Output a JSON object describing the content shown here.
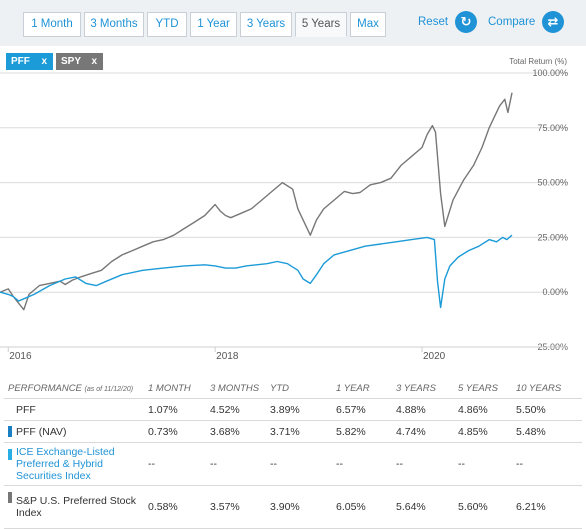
{
  "toolbar": {
    "tabs": [
      "1 Month",
      "3 Months",
      "YTD",
      "1 Year",
      "3 Years",
      "5 Years",
      "Max"
    ],
    "active_tab": "5 Years",
    "reset_label": "Reset",
    "compare_label": "Compare",
    "reset_icon": "refresh-icon",
    "compare_icon": "swap-arrows-icon"
  },
  "tickers": [
    {
      "label": "PFF",
      "remove": "x",
      "color": "#1b9bd7"
    },
    {
      "label": "SPY",
      "remove": "x",
      "color": "#777777"
    }
  ],
  "chart_data": {
    "type": "line",
    "ylabel": "Total Return (%)",
    "y_ticks": [
      "100.00%",
      "75.00%",
      "50.00%",
      "25.00%",
      "0.00%",
      "−25.00%"
    ],
    "y_tick_values": [
      100,
      75,
      50,
      25,
      0,
      -25
    ],
    "ylim": [
      -25,
      100
    ],
    "x_ticks": [
      "2016",
      "2018",
      "2020"
    ],
    "x_tick_values": [
      2016.0,
      2018.0,
      2020.0
    ],
    "xlim": [
      2015.92,
      2020.87
    ],
    "grid": true,
    "series": [
      {
        "name": "SPY",
        "color": "#777777",
        "x": [
          2015.92,
          2016.0,
          2016.05,
          2016.1,
          2016.15,
          2016.2,
          2016.3,
          2016.4,
          2016.5,
          2016.55,
          2016.62,
          2016.7,
          2016.8,
          2016.9,
          2017.0,
          2017.1,
          2017.2,
          2017.3,
          2017.4,
          2017.5,
          2017.6,
          2017.7,
          2017.8,
          2017.9,
          2018.0,
          2018.05,
          2018.1,
          2018.15,
          2018.25,
          2018.35,
          2018.45,
          2018.55,
          2018.65,
          2018.75,
          2018.8,
          2018.85,
          2018.92,
          2018.98,
          2019.05,
          2019.15,
          2019.25,
          2019.33,
          2019.4,
          2019.5,
          2019.6,
          2019.7,
          2019.8,
          2019.9,
          2020.0,
          2020.05,
          2020.1,
          2020.13,
          2020.18,
          2020.22,
          2020.3,
          2020.4,
          2020.5,
          2020.58,
          2020.65,
          2020.7,
          2020.75,
          2020.8,
          2020.83,
          2020.87
        ],
        "values": [
          0.0,
          1.5,
          -2.0,
          -5.0,
          -8.0,
          -1.0,
          3.0,
          4.0,
          5.0,
          3.5,
          5.5,
          7.0,
          8.5,
          10.0,
          14.0,
          17.0,
          19.0,
          21.0,
          23.0,
          24.0,
          26.0,
          29.0,
          32.0,
          35.0,
          40.0,
          37.0,
          35.0,
          34.0,
          36.0,
          38.0,
          42.0,
          46.0,
          50.0,
          47.0,
          38.0,
          33.0,
          26.0,
          33.0,
          38.0,
          42.0,
          46.0,
          45.0,
          45.5,
          49.0,
          50.0,
          52.0,
          58.0,
          62.0,
          66.0,
          72.0,
          76.0,
          73.0,
          45.0,
          30.0,
          42.0,
          51.0,
          58.0,
          66.0,
          75.0,
          80.0,
          85.0,
          88.0,
          82.0,
          91.0
        ]
      },
      {
        "name": "PFF",
        "color": "#1b9bd7",
        "x": [
          2015.92,
          2016.0,
          2016.05,
          2016.1,
          2016.15,
          2016.25,
          2016.4,
          2016.55,
          2016.65,
          2016.75,
          2016.85,
          2016.95,
          2017.1,
          2017.3,
          2017.5,
          2017.7,
          2017.9,
          2018.0,
          2018.1,
          2018.2,
          2018.3,
          2018.4,
          2018.5,
          2018.6,
          2018.7,
          2018.8,
          2018.85,
          2018.92,
          2018.98,
          2019.05,
          2019.15,
          2019.3,
          2019.45,
          2019.6,
          2019.75,
          2019.9,
          2020.05,
          2020.12,
          2020.15,
          2020.18,
          2020.22,
          2020.27,
          2020.35,
          2020.45,
          2020.55,
          2020.65,
          2020.72,
          2020.78,
          2020.82,
          2020.87
        ],
        "values": [
          0.0,
          -1.0,
          -2.0,
          -4.0,
          -3.0,
          -1.0,
          3.0,
          6.0,
          7.0,
          4.0,
          3.0,
          5.0,
          8.0,
          10.0,
          11.0,
          12.0,
          12.5,
          12.0,
          11.0,
          11.0,
          12.0,
          12.5,
          13.0,
          14.0,
          13.0,
          10.0,
          6.0,
          4.0,
          8.0,
          13.0,
          17.0,
          19.0,
          21.0,
          22.0,
          23.0,
          24.0,
          25.0,
          24.0,
          5.0,
          -7.0,
          6.0,
          12.0,
          16.0,
          19.0,
          21.0,
          24.0,
          23.0,
          25.0,
          24.0,
          26.0
        ]
      }
    ]
  },
  "performance": {
    "header": {
      "label": "PERFORMANCE",
      "as_of": "(as of 11/12/20)",
      "columns": [
        "1 MONTH",
        "3 MONTHS",
        "YTD",
        "1 YEAR",
        "3 YEARS",
        "5 YEARS",
        "10 YEARS"
      ]
    },
    "rows": [
      {
        "name": "PFF",
        "swatch": "",
        "link": false,
        "values": [
          "1.07%",
          "4.52%",
          "3.89%",
          "6.57%",
          "4.88%",
          "4.86%",
          "5.50%"
        ]
      },
      {
        "name": "PFF (NAV)",
        "swatch": "#1b7fc4",
        "link": false,
        "values": [
          "0.73%",
          "3.68%",
          "3.71%",
          "5.82%",
          "4.74%",
          "4.85%",
          "5.48%"
        ]
      },
      {
        "name": "ICE Exchange-Listed Preferred & Hybrid Securities Index",
        "swatch": "#29aee6",
        "link": true,
        "values": [
          "--",
          "--",
          "--",
          "--",
          "--",
          "--",
          "--"
        ]
      },
      {
        "name": "S&P U.S. Preferred Stock Index",
        "swatch": "#777777",
        "link": false,
        "values": [
          "0.58%",
          "3.57%",
          "3.90%",
          "6.05%",
          "5.64%",
          "5.60%",
          "6.21%"
        ]
      }
    ]
  }
}
